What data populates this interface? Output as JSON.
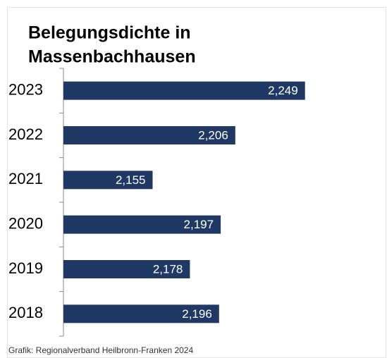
{
  "chart_data": {
    "type": "bar",
    "orientation": "horizontal",
    "title": "Belegungsdichte in Massenbachhausen",
    "source": "Grafik: Regionalverband Heilbronn-Franken 2024",
    "categories": [
      "2023",
      "2022",
      "2021",
      "2020",
      "2019",
      "2018"
    ],
    "values": [
      2.249,
      2.206,
      2.155,
      2.197,
      2.178,
      2.196
    ],
    "value_labels": [
      "2,249",
      "2,206",
      "2,155",
      "2,197",
      "2,178",
      "2,196"
    ],
    "color": "#203864",
    "xlim": [
      2.1,
      2.3
    ]
  }
}
